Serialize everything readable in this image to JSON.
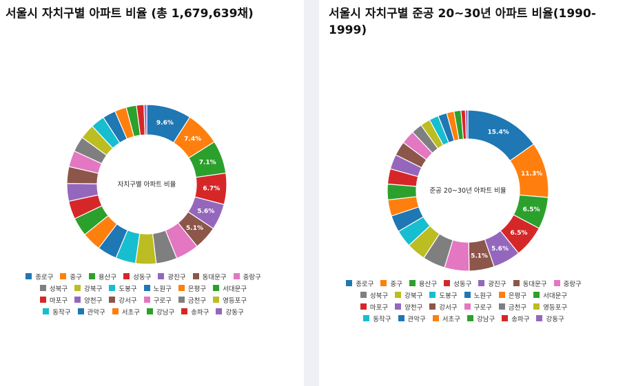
{
  "colors": [
    "#1f77b4",
    "#ff7f0e",
    "#2ca02c",
    "#d62728",
    "#9467bd",
    "#8c564b",
    "#e377c2",
    "#7f7f7f",
    "#bcbd22",
    "#17becf"
  ],
  "chart_data": [
    {
      "type": "donut",
      "title": "서울시 자치구별 아파트 비율 (총 1,679,639채)",
      "center_label": "자치구별 아파트 비율",
      "categories": [
        "종로구",
        "중구",
        "용산구",
        "성동구",
        "광진구",
        "동대문구",
        "중랑구",
        "성북구",
        "강북구",
        "도봉구",
        "노원구",
        "은평구",
        "서대문구",
        "마포구",
        "양천구",
        "강서구",
        "구로구",
        "금천구",
        "영등포구",
        "동작구",
        "관악구",
        "서초구",
        "강남구",
        "송파구",
        "강동구"
      ],
      "values": [
        9.6,
        7.4,
        7.1,
        6.7,
        5.6,
        5.1,
        5.0,
        4.5,
        4.4,
        4.3,
        4.2,
        4.1,
        4.0,
        3.9,
        3.8,
        3.6,
        3.5,
        3.3,
        3.2,
        3.0,
        2.8,
        2.5,
        2.2,
        1.6,
        0.6
      ],
      "labels_shown": [
        "9.6%",
        "7.4%",
        "7.1%",
        "6.7%",
        "5.6%",
        "5.1%"
      ],
      "legend_position": "bottom"
    },
    {
      "type": "donut",
      "title": "서울시 자치구별 준공 20~30년 아파트 비율(1990-1999)",
      "center_label": "준공 20~30년 아파트 비율",
      "categories": [
        "종로구",
        "중구",
        "용산구",
        "성동구",
        "광진구",
        "동대문구",
        "중랑구",
        "성북구",
        "강북구",
        "도봉구",
        "노원구",
        "은평구",
        "서대문구",
        "마포구",
        "양천구",
        "강서구",
        "구로구",
        "금천구",
        "영등포구",
        "동작구",
        "관악구",
        "서초구",
        "강남구",
        "송파구",
        "강동구"
      ],
      "values": [
        15.4,
        11.3,
        6.5,
        6.5,
        5.6,
        5.1,
        5.0,
        4.6,
        3.9,
        3.5,
        3.4,
        3.3,
        3.2,
        3.1,
        3.0,
        2.9,
        2.8,
        2.2,
        2.0,
        1.9,
        1.8,
        1.5,
        1.4,
        0.9,
        0.5
      ],
      "labels_shown": [
        "15.4%",
        "11.3%",
        "6.5%",
        "6.5%",
        "5.6%",
        "5.1%"
      ],
      "legend_position": "bottom"
    }
  ]
}
